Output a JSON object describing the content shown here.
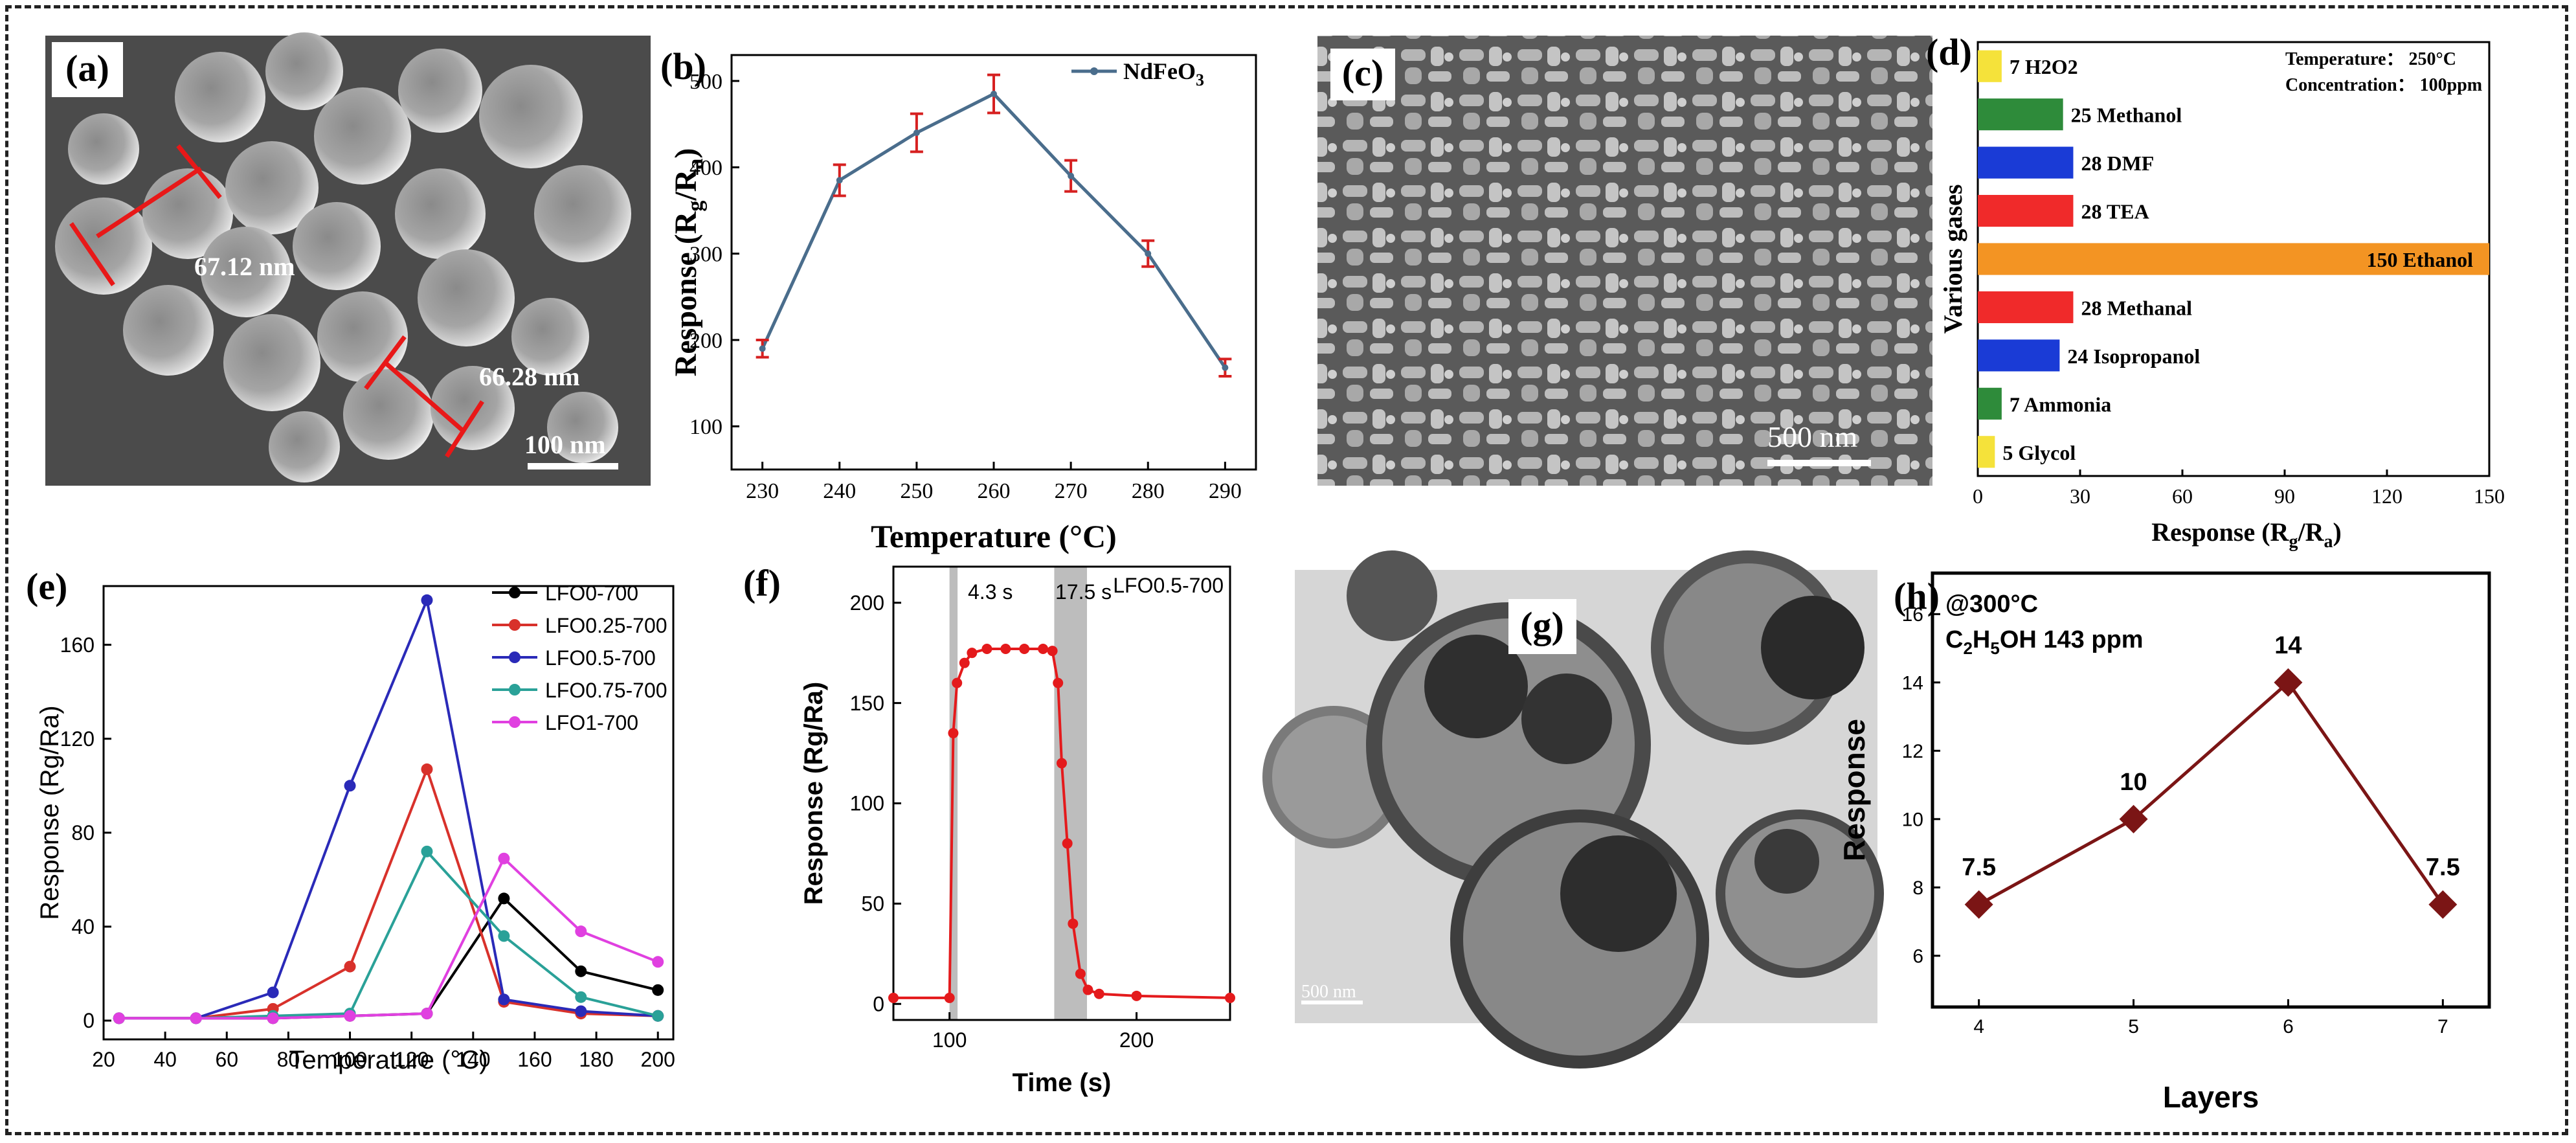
{
  "panels": {
    "a": {
      "label": "(a)",
      "annotations": [
        "67.12 nm",
        "66.28 nm"
      ],
      "scale_bar": "100 nm"
    },
    "c": {
      "label": "(c)",
      "scale_bar": "500 nm"
    },
    "g": {
      "label": "(g)",
      "scale_bar": "500 nm"
    }
  },
  "chart_data": [
    {
      "id": "b",
      "panel_label": "(b)",
      "type": "line",
      "xlabel": "Temperature (°C)",
      "ylabel": "Response (Rg/Ra)",
      "xlim": [
        226,
        294
      ],
      "ylim": [
        50,
        530
      ],
      "xticks": [
        230,
        240,
        250,
        260,
        270,
        280,
        290
      ],
      "yticks": [
        100,
        200,
        300,
        400,
        500
      ],
      "legend_position": "top-right",
      "series": [
        {
          "name": "NdFeO3",
          "color": "#4a6d8c",
          "x": [
            230,
            240,
            250,
            260,
            270,
            280,
            290
          ],
          "y": [
            190,
            385,
            440,
            485,
            390,
            300,
            168
          ],
          "error": [
            10,
            18,
            22,
            22,
            18,
            15,
            10
          ]
        }
      ]
    },
    {
      "id": "d",
      "panel_label": "(d)",
      "type": "bar",
      "orientation": "horizontal",
      "xlabel": "Response (Rg/Ra)",
      "ylabel": "Various gases",
      "xlim": [
        0,
        150
      ],
      "xticks": [
        0,
        30,
        60,
        90,
        120,
        150
      ],
      "annotations": [
        "Temperature： 250°C",
        "Concentration： 100ppm"
      ],
      "categories": [
        "H2O2",
        "Methanol",
        "DMF",
        "TEA",
        "Ethanol",
        "Methanal",
        "Isopropanol",
        "Ammonia",
        "Glycol"
      ],
      "values": [
        7,
        25,
        28,
        28,
        150,
        28,
        24,
        7,
        5
      ],
      "colors": [
        "#f5e23a",
        "#2e8b3a",
        "#1a3bd6",
        "#f02a2a",
        "#f39423",
        "#f02a2a",
        "#1a3bd6",
        "#2e8b3a",
        "#f5e23a"
      ]
    },
    {
      "id": "e",
      "panel_label": "(e)",
      "type": "line",
      "xlabel": "Temperature (°C)",
      "ylabel": "Response (Rg/Ra)",
      "xlim": [
        20,
        205
      ],
      "ylim": [
        -8,
        185
      ],
      "xticks": [
        20,
        40,
        60,
        80,
        100,
        120,
        140,
        160,
        180,
        200
      ],
      "yticks": [
        0,
        40,
        80,
        120,
        160
      ],
      "legend_position": "top-right",
      "series": [
        {
          "name": "LFO0-700",
          "color": "#000000",
          "x": [
            25,
            50,
            75,
            100,
            125,
            150,
            175,
            200
          ],
          "y": [
            1,
            1,
            1,
            2,
            3,
            52,
            21,
            13
          ]
        },
        {
          "name": "LFO0.25-700",
          "color": "#d8312b",
          "x": [
            25,
            50,
            75,
            100,
            125,
            150,
            175,
            200
          ],
          "y": [
            1,
            1,
            5,
            23,
            107,
            8,
            3,
            2
          ]
        },
        {
          "name": "LFO0.5-700",
          "color": "#2a2ab8",
          "x": [
            25,
            50,
            75,
            100,
            125,
            150,
            175,
            200
          ],
          "y": [
            1,
            1,
            12,
            100,
            179,
            9,
            4,
            2
          ]
        },
        {
          "name": "LFO0.75-700",
          "color": "#2aa198",
          "x": [
            25,
            50,
            75,
            100,
            125,
            150,
            175,
            200
          ],
          "y": [
            1,
            1,
            2,
            3,
            72,
            36,
            10,
            2
          ]
        },
        {
          "name": "LFO1-700",
          "color": "#e040e0",
          "x": [
            25,
            50,
            75,
            100,
            125,
            150,
            175,
            200
          ],
          "y": [
            1,
            1,
            1,
            2,
            3,
            69,
            38,
            25
          ]
        }
      ]
    },
    {
      "id": "f",
      "panel_label": "(f)",
      "type": "scatter",
      "xlabel": "Time (s)",
      "ylabel": "Response (Rg/Ra)",
      "xlim": [
        70,
        250
      ],
      "ylim": [
        -8,
        218
      ],
      "xticks": [
        100,
        200
      ],
      "yticks": [
        0,
        50,
        100,
        150,
        200
      ],
      "annotations": [
        "4.3 s",
        "17.5 s",
        "LFO0.5-700"
      ],
      "shaded_regions": [
        [
          100,
          104.3
        ],
        [
          156,
          173.5
        ]
      ],
      "series": [
        {
          "color": "#e41a1c",
          "x": [
            70,
            100,
            102,
            104,
            108,
            112,
            120,
            130,
            140,
            150,
            155,
            158,
            160,
            163,
            166,
            170,
            174,
            180,
            200,
            250
          ],
          "y": [
            3,
            3,
            135,
            160,
            170,
            175,
            177,
            177,
            177,
            177,
            176,
            160,
            120,
            80,
            40,
            15,
            7,
            5,
            4,
            3
          ]
        }
      ]
    },
    {
      "id": "h",
      "panel_label": "(h)",
      "type": "line",
      "xlabel": "Layers",
      "ylabel": "Response",
      "xlim": [
        3.7,
        7.3
      ],
      "ylim": [
        4.5,
        17.2
      ],
      "xticks": [
        4,
        5,
        6,
        7
      ],
      "yticks": [
        6,
        8,
        10,
        12,
        14,
        16
      ],
      "annotations": [
        "@300°C",
        "C2H5OH 143 ppm"
      ],
      "data_labels": [
        "7.5",
        "10",
        "14",
        "7.5"
      ],
      "series": [
        {
          "color": "#7b1515",
          "x": [
            4,
            5,
            6,
            7
          ],
          "y": [
            7.5,
            10,
            14,
            7.5
          ]
        }
      ]
    }
  ]
}
